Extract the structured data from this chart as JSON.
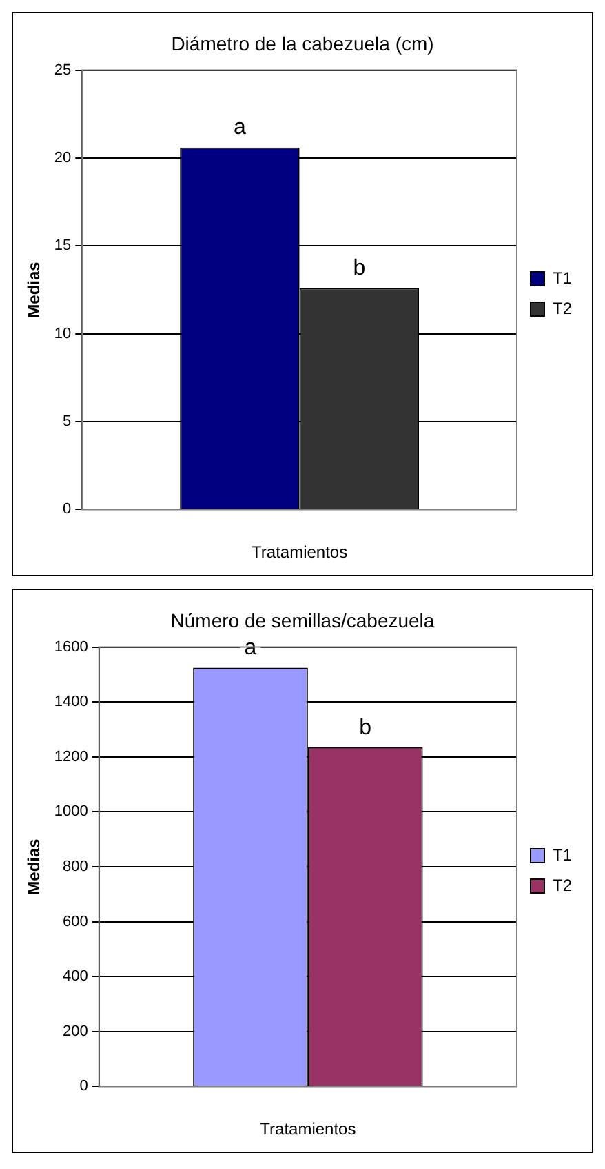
{
  "chart_data": [
    {
      "type": "bar",
      "title": "Diámetro de la cabezuela (cm)",
      "xlabel": "Tratamientos",
      "ylabel": "Medias",
      "categories": [
        null
      ],
      "series": [
        {
          "name": "T1",
          "color": "#000080",
          "values": [
            20.6
          ]
        },
        {
          "name": "T2",
          "color": "#333333",
          "values": [
            12.6
          ]
        }
      ],
      "annotations": [
        "a",
        "b"
      ],
      "ylim": [
        0,
        25
      ],
      "yticks": [
        0,
        5,
        10,
        15,
        20,
        25
      ],
      "grid": "y",
      "legend": "right"
    },
    {
      "type": "bar",
      "title": "Número de semillas/cabezuela",
      "xlabel": "Tratamientos",
      "ylabel": "Medias",
      "categories": [
        null
      ],
      "series": [
        {
          "name": "T1",
          "color": "#9999ff",
          "values": [
            1525
          ]
        },
        {
          "name": "T2",
          "color": "#993366",
          "values": [
            1235
          ]
        }
      ],
      "annotations": [
        "a",
        "b"
      ],
      "ylim": [
        0,
        1600
      ],
      "yticks": [
        0,
        200,
        400,
        600,
        800,
        1000,
        1200,
        1400,
        1600
      ],
      "grid": "y",
      "legend": "right"
    }
  ]
}
